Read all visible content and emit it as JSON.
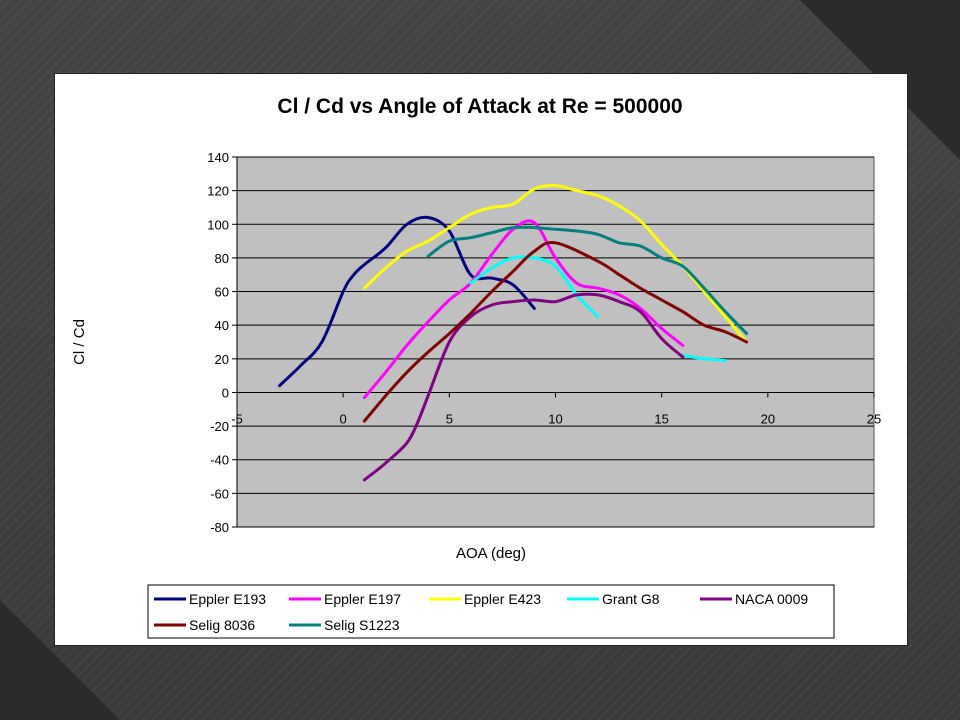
{
  "chart_data": {
    "type": "line",
    "title": "Cl / Cd vs Angle of Attack at Re = 500000",
    "xlabel": "AOA (deg)",
    "ylabel": "Cl / Cd",
    "xlim": [
      -5,
      25
    ],
    "ylim": [
      -80,
      140
    ],
    "xticks": [
      "-5",
      "0",
      "5",
      "10",
      "15",
      "20",
      "25"
    ],
    "yticks": [
      "140",
      "120",
      "100",
      "80",
      "60",
      "40",
      "20",
      "0",
      "-20",
      "-40",
      "-60",
      "-80"
    ],
    "grid": "horizontal",
    "plot_background": "#c0c0c0",
    "legend_position": "bottom",
    "series": [
      {
        "name": "Eppler E193",
        "color": "#00007f",
        "x": [
          -3,
          -2,
          -1,
          0,
          0.5,
          1,
          2,
          3,
          4,
          5,
          6,
          7,
          8,
          9
        ],
        "y": [
          4,
          16,
          30,
          60,
          70,
          76,
          86,
          100,
          104,
          96,
          70,
          68,
          64,
          50
        ]
      },
      {
        "name": "Eppler E197",
        "color": "#ff00ff",
        "x": [
          1,
          2,
          3,
          4,
          5,
          6,
          7,
          8,
          9,
          10,
          11,
          12,
          13,
          14,
          15,
          16
        ],
        "y": [
          -3,
          12,
          28,
          42,
          55,
          65,
          82,
          97,
          101,
          80,
          65,
          62,
          58,
          50,
          38,
          28
        ]
      },
      {
        "name": "Eppler E423",
        "color": "#ffff00",
        "x": [
          1,
          2,
          3,
          4,
          5,
          6,
          7,
          8,
          9,
          10,
          11,
          12,
          13,
          14,
          15,
          16,
          17,
          18,
          19
        ],
        "y": [
          62,
          74,
          84,
          90,
          98,
          106,
          110,
          112,
          121,
          123,
          120,
          117,
          111,
          102,
          88,
          75,
          60,
          45,
          30
        ]
      },
      {
        "name": "Grant G8",
        "color": "#00ffff",
        "x": [
          6,
          7,
          8,
          9,
          10,
          11,
          12,
          16,
          17,
          18
        ],
        "y": [
          65,
          74,
          80,
          80,
          75,
          58,
          45,
          22,
          20,
          19
        ]
      },
      {
        "name": "NACA 0009",
        "color": "#7f007f",
        "x": [
          1,
          2,
          3,
          3.5,
          4,
          5,
          6,
          7,
          8,
          9,
          10,
          11,
          12,
          13,
          14,
          15,
          16
        ],
        "y": [
          -52,
          -42,
          -30,
          -18,
          -2,
          30,
          45,
          52,
          54,
          55,
          54,
          58,
          58,
          54,
          48,
          32,
          21
        ]
      },
      {
        "name": "Selig 8036",
        "color": "#7f0000",
        "x": [
          1,
          2,
          3,
          4,
          5,
          6,
          7,
          8,
          9,
          10,
          12,
          13,
          14,
          15,
          16,
          17,
          18,
          19
        ],
        "y": [
          -17,
          -2,
          12,
          24,
          35,
          47,
          60,
          72,
          84,
          89,
          78,
          70,
          62,
          55,
          48,
          40,
          36,
          30
        ]
      },
      {
        "name": "Selig S1223",
        "color": "#007f7f",
        "x": [
          4,
          5,
          6,
          7,
          8,
          9,
          10,
          11,
          12,
          13,
          14,
          15,
          16,
          17,
          18,
          19
        ],
        "y": [
          81,
          90,
          92,
          95,
          98,
          98,
          97,
          96,
          94,
          89,
          87,
          80,
          75,
          62,
          48,
          35
        ]
      }
    ]
  }
}
